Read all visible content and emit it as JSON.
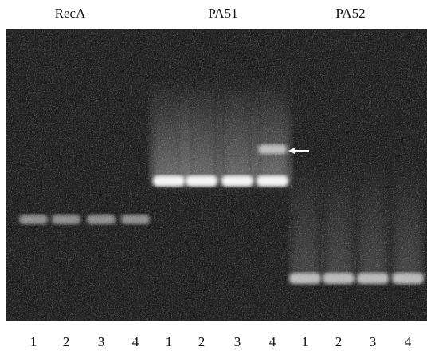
{
  "groups": [
    {
      "label": "RecA",
      "lanes": [
        "1",
        "2",
        "3",
        "4"
      ]
    },
    {
      "label": "PA51",
      "lanes": [
        "1",
        "2",
        "3",
        "4"
      ]
    },
    {
      "label": "PA52",
      "lanes": [
        "1",
        "2",
        "3",
        "4"
      ]
    }
  ]
}
